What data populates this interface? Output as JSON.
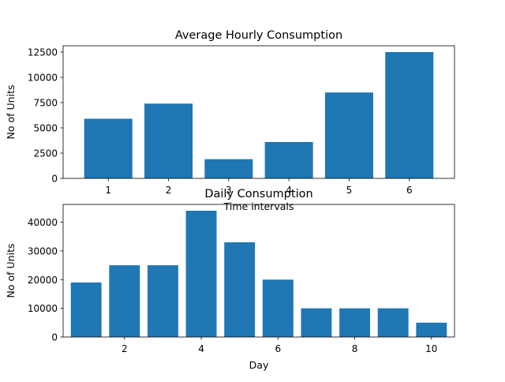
{
  "chart_data": [
    {
      "type": "bar",
      "title": "Average Hourly Consumption",
      "xlabel": "Time intervals",
      "ylabel": "No of Units",
      "categories": [
        1,
        2,
        3,
        4,
        5,
        6
      ],
      "values": [
        5900,
        7400,
        1900,
        3600,
        8500,
        12500
      ],
      "xlim": [
        0.25,
        6.75
      ],
      "ylim": [
        0,
        13125
      ],
      "xticks": [
        1,
        2,
        3,
        4,
        5,
        6
      ],
      "yticks": [
        0,
        2500,
        5000,
        7500,
        10000,
        12500
      ],
      "bar_color": "#1f77b4",
      "grid": false
    },
    {
      "type": "bar",
      "title": "Daily Consumption",
      "xlabel": "Day",
      "ylabel": "No of Units",
      "categories": [
        1,
        2,
        3,
        4,
        5,
        6,
        7,
        8,
        9,
        10
      ],
      "values": [
        19000,
        25000,
        25000,
        44000,
        33000,
        20000,
        10000,
        10000,
        10000,
        5000
      ],
      "xlim": [
        0.4,
        10.6
      ],
      "ylim": [
        0,
        46200
      ],
      "xticks": [
        2,
        4,
        6,
        8,
        10
      ],
      "yticks": [
        0,
        10000,
        20000,
        30000,
        40000
      ],
      "bar_color": "#1f77b4",
      "grid": false
    }
  ]
}
